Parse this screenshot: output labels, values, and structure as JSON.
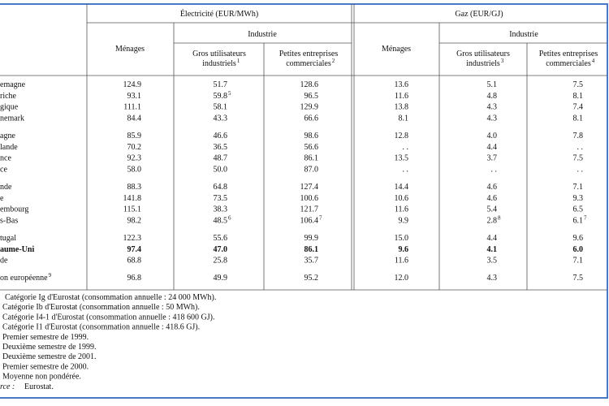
{
  "header": {
    "electricite": {
      "title": "Électricité (EUR/MWh)",
      "menages": "Ménages",
      "industrie": "Industrie",
      "gros": [
        "Gros utilisateurs",
        "industriels"
      ],
      "gros_sup": "1",
      "petites": [
        "Petites entreprises",
        "commerciales"
      ],
      "petites_sup": "2"
    },
    "gaz": {
      "title": "Gaz (EUR/GJ)",
      "menages": "Ménages",
      "industrie": "Industrie",
      "gros": [
        "Gros utilisateurs",
        "industriels"
      ],
      "gros_sup": "3",
      "petites": [
        "Petites entreprises",
        "commerciales"
      ],
      "petites_sup": "4"
    }
  },
  "table": {
    "groups": [
      [
        {
          "label": "emagne",
          "cells": [
            "124.9",
            "51.7",
            "128.6",
            "13.6",
            "5.1",
            "7.5"
          ]
        },
        {
          "label": "riche",
          "cells": [
            "93.1",
            {
              "text": "59.8",
              "sup": "5"
            },
            "96.5",
            "11.6",
            "4.8",
            "8.1"
          ]
        },
        {
          "label": "gique",
          "cells": [
            "111.1",
            "58.1",
            "129.9",
            "13.8",
            "4.3",
            "7.4"
          ]
        },
        {
          "label": "nemark",
          "cells": [
            "84.4",
            "43.3",
            "66.6",
            "8.1",
            "4.3",
            "8.1"
          ]
        }
      ],
      [
        {
          "label": "agne",
          "cells": [
            "85.9",
            "46.6",
            "98.6",
            "12.8",
            "4.0",
            "7.8"
          ]
        },
        {
          "label": "lande",
          "cells": [
            "70.2",
            "36.5",
            "56.6",
            ". .",
            "4.4",
            ". ."
          ]
        },
        {
          "label": "nce",
          "cells": [
            "92.3",
            "48.7",
            "86.1",
            "13.5",
            "3.7",
            "7.5"
          ]
        },
        {
          "label": "ce",
          "cells": [
            "58.0",
            "50.0",
            "87.0",
            ". .",
            ". .",
            ". ."
          ]
        }
      ],
      [
        {
          "label": "nde",
          "cells": [
            "88.3",
            "64.8",
            "127.4",
            "14.4",
            "4.6",
            "7.1"
          ]
        },
        {
          "label": "e",
          "cells": [
            "141.8",
            "73.5",
            "100.6",
            "10.6",
            "4.6",
            "9.3"
          ]
        },
        {
          "label": "embourg",
          "cells": [
            "115.1",
            "38.3",
            "121.7",
            "11.6",
            "5.4",
            "6.5"
          ]
        },
        {
          "label": "s-Bas",
          "cells": [
            "98.2",
            {
              "text": "48.5",
              "sup": "6"
            },
            {
              "text": "106.4",
              "sup": "7"
            },
            "9.9",
            {
              "text": "2.8",
              "sup": "8"
            },
            {
              "text": "6.1",
              "sup": "7"
            }
          ]
        }
      ],
      [
        {
          "label": "tugal",
          "cells": [
            "122.3",
            "55.6",
            "99.9",
            "15.0",
            "4.4",
            "9.6"
          ]
        },
        {
          "label": "aume-Uni",
          "bold": true,
          "cells": [
            "97.4",
            "47.0",
            "86.1",
            "9.6",
            "4.1",
            "6.0"
          ]
        },
        {
          "label": "de",
          "cells": [
            "68.8",
            "25.8",
            "35.7",
            "11.6",
            "3.5",
            "7.1"
          ]
        }
      ],
      [
        {
          "label": "on européenne",
          "label_sup": "9",
          "cells": [
            "96.8",
            "49.9",
            "95.2",
            "12.0",
            "4.3",
            "7.5"
          ]
        }
      ]
    ]
  },
  "notes": [
    "Catégorie Ig d'Eurostat (consommation annuelle : 24 000 MWh).",
    "Catégorie Ib d'Eurostat (consommation annuelle : 50 MWh).",
    "Catégorie I4-1 d'Eurostat (consommation annuelle : 418 600 GJ).",
    "Catégorie I1 d'Eurostat (consommation annuelle : 418.6 GJ).",
    "Premier semestre de 1999.",
    "Deuxième semestre de 1999.",
    "Deuxième semestre de 2001.",
    "Premier semestre de 2000.",
    "Moyenne non pondérée."
  ],
  "source": {
    "label": "rce :",
    "text": "Eurostat."
  }
}
